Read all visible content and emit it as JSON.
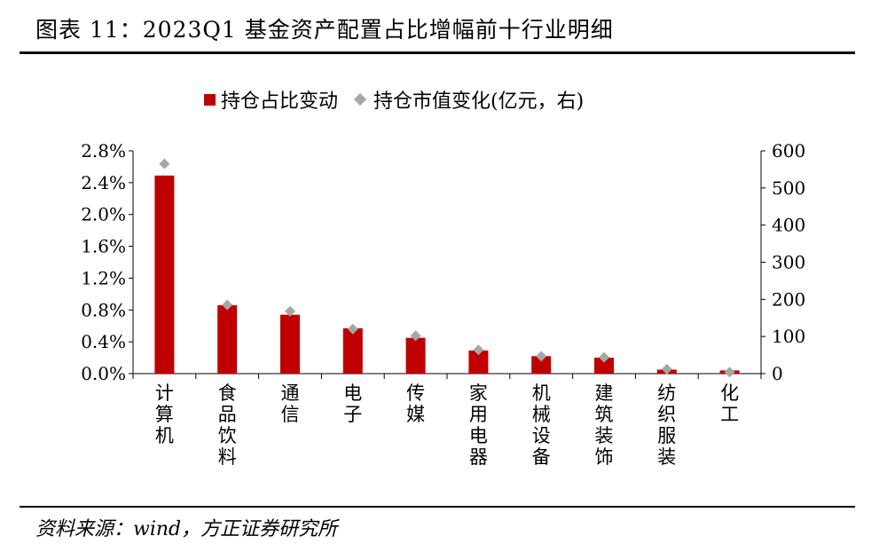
{
  "header": {
    "title": "图表 11：2023Q1 基金资产配置占比增幅前十行业明细"
  },
  "footer": {
    "source": "资料来源：wind，方正证券研究所"
  },
  "colors": {
    "bar": "#c00000",
    "marker": "#a6a6a6"
  },
  "chart_data": {
    "type": "bar",
    "title": "",
    "categories": [
      "计算机",
      "食品饮料",
      "通信",
      "电子",
      "传媒",
      "家用电器",
      "机械设备",
      "建筑装饰",
      "纺织服装",
      "化工"
    ],
    "series": [
      {
        "name": "持仓占比变动",
        "type": "bar",
        "axis": "left",
        "values": [
          0.0249,
          0.0086,
          0.0074,
          0.0057,
          0.0045,
          0.0029,
          0.0022,
          0.002,
          0.0005,
          0.0004
        ]
      },
      {
        "name": "持仓市值变化(亿元，右)",
        "type": "scatter",
        "marker": "diamond",
        "axis": "right",
        "values": [
          565,
          185,
          168,
          120,
          102,
          64,
          47,
          44,
          12,
          4
        ]
      }
    ],
    "left_axis": {
      "ylim": [
        0,
        0.028
      ],
      "ticks": [
        "0.0%",
        "0.4%",
        "0.8%",
        "1.2%",
        "1.6%",
        "2.0%",
        "2.4%",
        "2.8%"
      ]
    },
    "right_axis": {
      "ylim": [
        0,
        600
      ],
      "ticks": [
        "0",
        "100",
        "200",
        "300",
        "400",
        "500",
        "600"
      ]
    },
    "legend_position": "top-center",
    "grid": false
  }
}
